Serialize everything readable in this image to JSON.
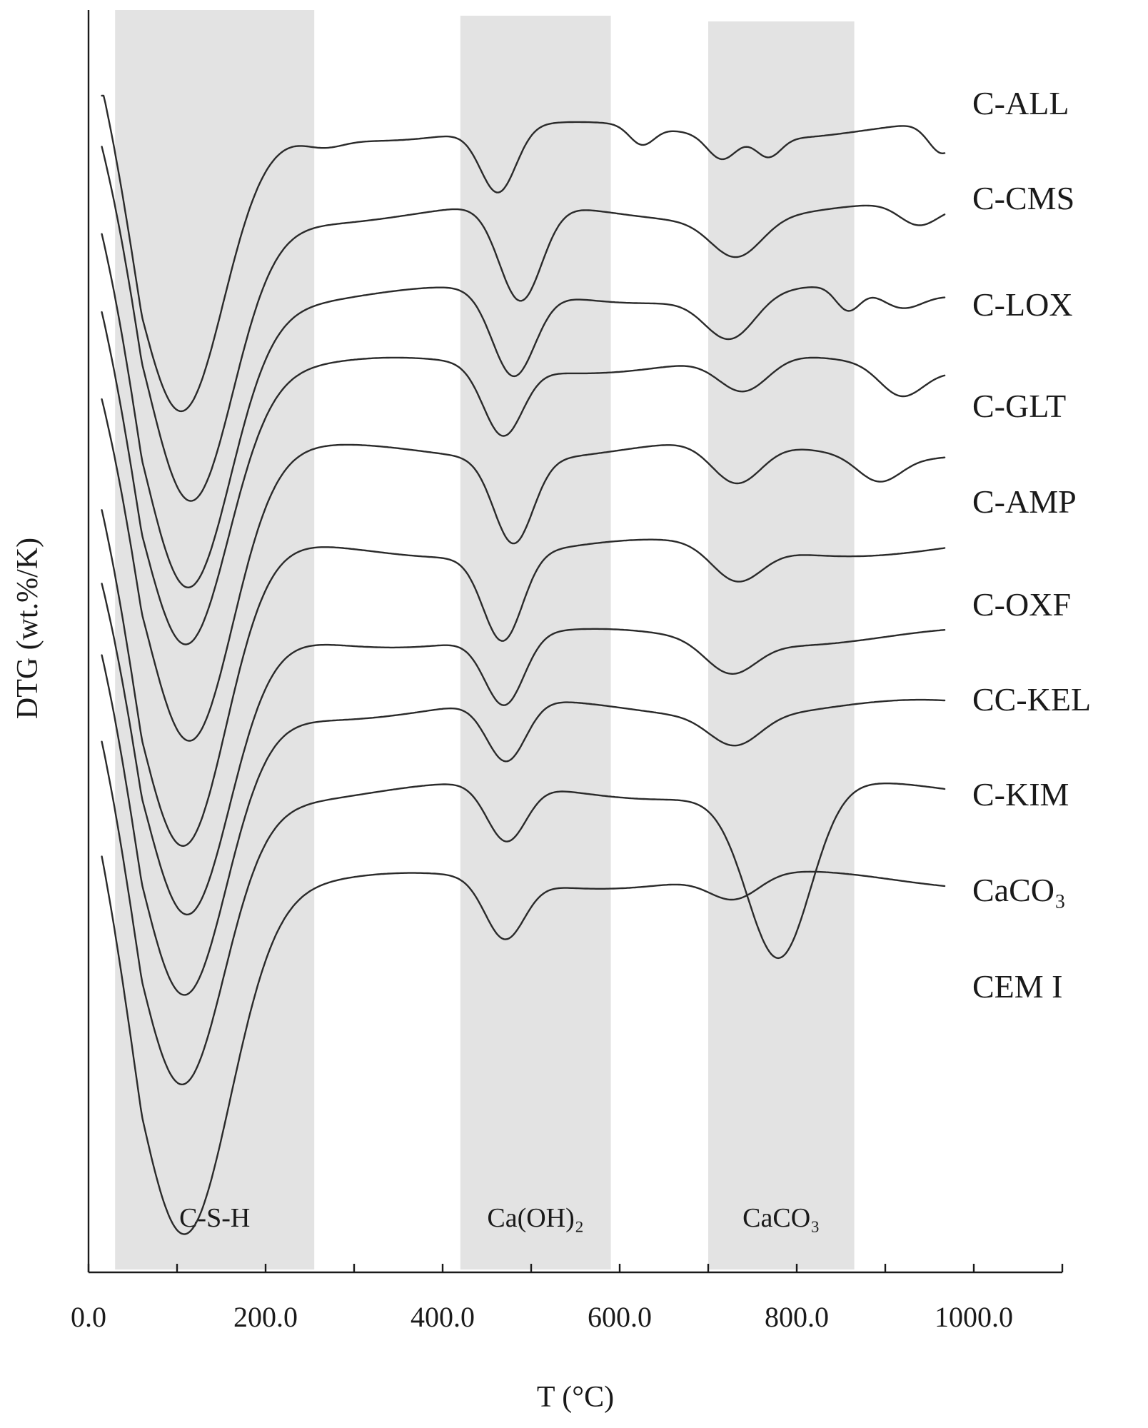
{
  "chart_data": {
    "type": "line",
    "title": "",
    "xlabel": "T (°C)",
    "ylabel": "DTG (wt.%/K)",
    "xlim": [
      0,
      1100
    ],
    "xticks": [
      0,
      100,
      200,
      300,
      400,
      500,
      600,
      700,
      800,
      900,
      1000,
      1100
    ],
    "xtick_labels": [
      {
        "x": 0,
        "label": "0.0"
      },
      {
        "x": 200,
        "label": "200.0"
      },
      {
        "x": 400,
        "label": "400.0"
      },
      {
        "x": 600,
        "label": "600.0"
      },
      {
        "x": 800,
        "label": "800.0"
      },
      {
        "x": 1000,
        "label": "1000.0"
      }
    ],
    "bands": [
      {
        "label": "C-S-H",
        "x_range": [
          30,
          255
        ]
      },
      {
        "label": "Ca(OH)₂",
        "x_range": [
          420,
          590
        ]
      },
      {
        "label": "CaCO₃",
        "x_range": [
          700,
          865
        ]
      }
    ],
    "series": [
      {
        "name": "C-ALL",
        "dips": [
          105,
          265,
          463,
          625,
          715,
          768,
          965
        ]
      },
      {
        "name": "C-CMS",
        "dips": [
          115,
          488,
          732,
          938
        ]
      },
      {
        "name": "C-LOX",
        "dips": [
          112,
          480,
          725,
          858,
          918
        ]
      },
      {
        "name": "C-GLT",
        "dips": [
          110,
          468,
          740,
          918
        ]
      },
      {
        "name": "C-AMP",
        "dips": [
          115,
          480,
          732,
          893
        ]
      },
      {
        "name": "C-OXF",
        "dips": [
          108,
          468,
          732
        ]
      },
      {
        "name": "CC-KEL",
        "dips": [
          112,
          470,
          725
        ]
      },
      {
        "name": "C-KIM",
        "dips": [
          108,
          472,
          730
        ]
      },
      {
        "name": "CaCO₃",
        "dips": [
          105,
          472,
          780
        ]
      },
      {
        "name": "CEM I",
        "dips": [
          108,
          470,
          730
        ]
      }
    ]
  }
}
